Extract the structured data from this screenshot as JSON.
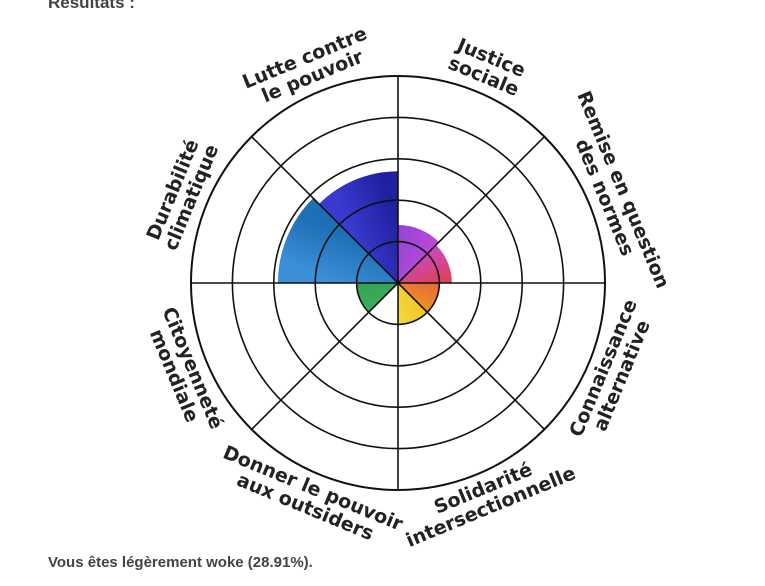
{
  "heading": "Résultats :",
  "result_text": "Vous êtes légèrement woke (28.91%).",
  "chart_data": {
    "type": "radial-bar",
    "rings": 5,
    "max": 5,
    "categories": [
      {
        "label": [
          "Justice",
          "sociale"
        ],
        "value": 1.4,
        "color_start": "#8e44d8",
        "color_end": "#c04ad6"
      },
      {
        "label": [
          "Remise en question",
          "des normes"
        ],
        "value": 1.3,
        "color_start": "#c64ad0",
        "color_end": "#e24040"
      },
      {
        "label": [
          "Connaissance",
          "alternative"
        ],
        "value": 1.0,
        "color_start": "#e25a3a",
        "color_end": "#f0a020"
      },
      {
        "label": [
          "Solidarité",
          "intersectionnelle"
        ],
        "value": 1.0,
        "color_start": "#f4c020",
        "color_end": "#f2e040"
      },
      {
        "label": [
          "Donner le pouvoir",
          "aux outsiders"
        ],
        "value": 0.0,
        "color_start": "#8bc34a",
        "color_end": "#4caf50"
      },
      {
        "label": [
          "Citoyenneté",
          "mondiale"
        ],
        "value": 1.0,
        "color_start": "#43b05c",
        "color_end": "#2e9e50"
      },
      {
        "label": [
          "Durabilité",
          "climatique"
        ],
        "value": 2.9,
        "color_start": "#3a8fd8",
        "color_end": "#1f6fb5"
      },
      {
        "label": [
          "Lutte contre",
          "le pouvoir"
        ],
        "value": 2.7,
        "color_start": "#3a3ad0",
        "color_end": "#2020a0"
      }
    ]
  }
}
